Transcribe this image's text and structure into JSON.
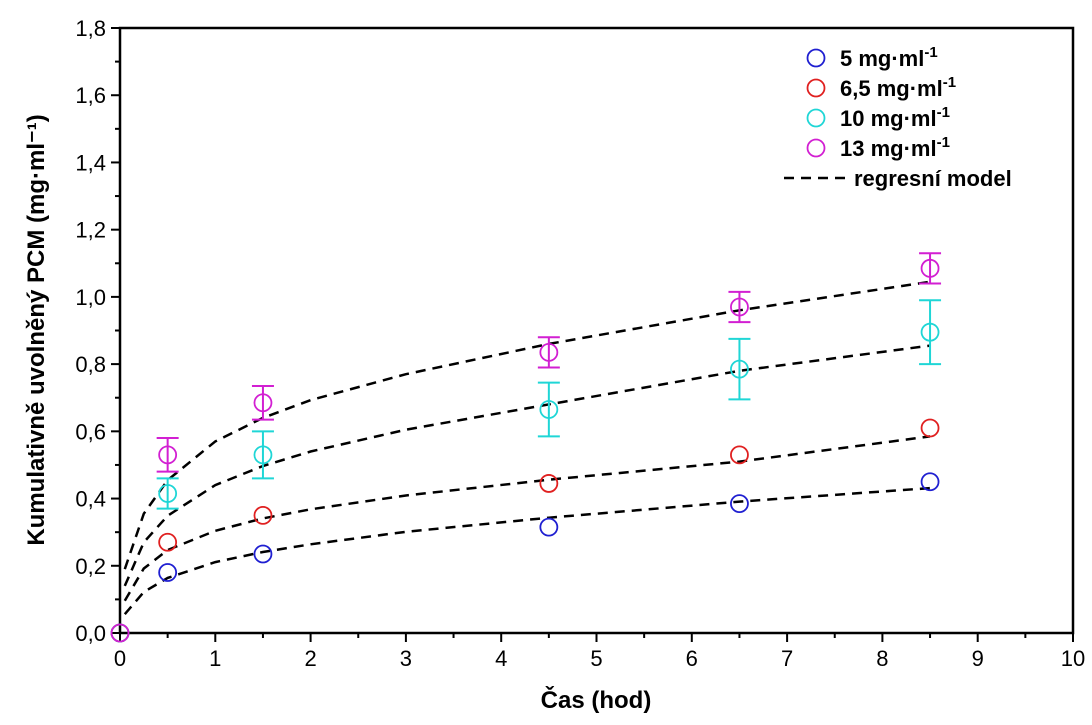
{
  "chart_data": {
    "type": "scatter",
    "title": "",
    "xlabel": "Čas (hod)",
    "ylabel": "Kumulativně uvolněný PCM (mg·ml⁻¹)",
    "xlim": [
      0,
      10
    ],
    "ylim": [
      0,
      1.8
    ],
    "x_ticks": [
      "0",
      "1",
      "2",
      "3",
      "4",
      "5",
      "6",
      "7",
      "8",
      "9",
      "10"
    ],
    "y_ticks": [
      "0,0",
      "0,2",
      "0,4",
      "0,6",
      "0,8",
      "1,0",
      "1,2",
      "1,4",
      "1,6",
      "1,8"
    ],
    "grid": false,
    "legend_position": "top-right",
    "series": [
      {
        "name": "5 mg·ml-1",
        "color": "#1f1fd1",
        "x": [
          0,
          0.5,
          1.5,
          4.5,
          6.5,
          8.5
        ],
        "y": [
          0,
          0.18,
          0.235,
          0.315,
          0.385,
          0.45
        ],
        "err": [
          0,
          0,
          0,
          0,
          0,
          0
        ]
      },
      {
        "name": "6,5 mg·ml-1",
        "color": "#e02020",
        "x": [
          0,
          0.5,
          1.5,
          4.5,
          6.5,
          8.5
        ],
        "y": [
          0,
          0.27,
          0.35,
          0.445,
          0.53,
          0.61
        ],
        "err": [
          0,
          0,
          0,
          0,
          0,
          0
        ]
      },
      {
        "name": "10 mg·ml-1",
        "color": "#1fd6d6",
        "x": [
          0,
          0.5,
          1.5,
          4.5,
          6.5,
          8.5
        ],
        "y": [
          0,
          0.415,
          0.53,
          0.665,
          0.785,
          0.895
        ],
        "err": [
          0,
          0.045,
          0.07,
          0.08,
          0.09,
          0.095
        ]
      },
      {
        "name": "13 mg·ml-1",
        "color": "#d21fd2",
        "x": [
          0,
          0.5,
          1.5,
          4.5,
          6.5,
          8.5
        ],
        "y": [
          0,
          0.53,
          0.685,
          0.835,
          0.97,
          1.085
        ],
        "err": [
          0,
          0.05,
          0.05,
          0.045,
          0.045,
          0.045
        ]
      }
    ],
    "model": {
      "name": "regresní model",
      "color": "#000000",
      "curves": [
        {
          "x": [
            0.05,
            0.25,
            0.5,
            1,
            1.5,
            2,
            3,
            4.5,
            6.5,
            8.5
          ],
          "y": [
            0.056,
            0.122,
            0.164,
            0.211,
            0.241,
            0.264,
            0.301,
            0.343,
            0.391,
            0.431
          ]
        },
        {
          "x": [
            0.05,
            0.25,
            0.5,
            1,
            1.5,
            2,
            3,
            4.5,
            6.5,
            8.5
          ],
          "y": [
            0.096,
            0.192,
            0.247,
            0.304,
            0.341,
            0.368,
            0.409,
            0.456,
            0.51,
            0.585
          ]
        },
        {
          "x": [
            0.05,
            0.25,
            0.5,
            1,
            1.5,
            2,
            3,
            4.5,
            6.5,
            8.5
          ],
          "y": [
            0.14,
            0.27,
            0.349,
            0.44,
            0.497,
            0.54,
            0.605,
            0.68,
            0.78,
            0.855
          ]
        },
        {
          "x": [
            0.05,
            0.25,
            0.5,
            1,
            1.5,
            2,
            3,
            4.5,
            6.5,
            8.5
          ],
          "y": [
            0.19,
            0.355,
            0.455,
            0.57,
            0.64,
            0.693,
            0.77,
            0.86,
            0.96,
            1.045
          ]
        }
      ]
    }
  }
}
